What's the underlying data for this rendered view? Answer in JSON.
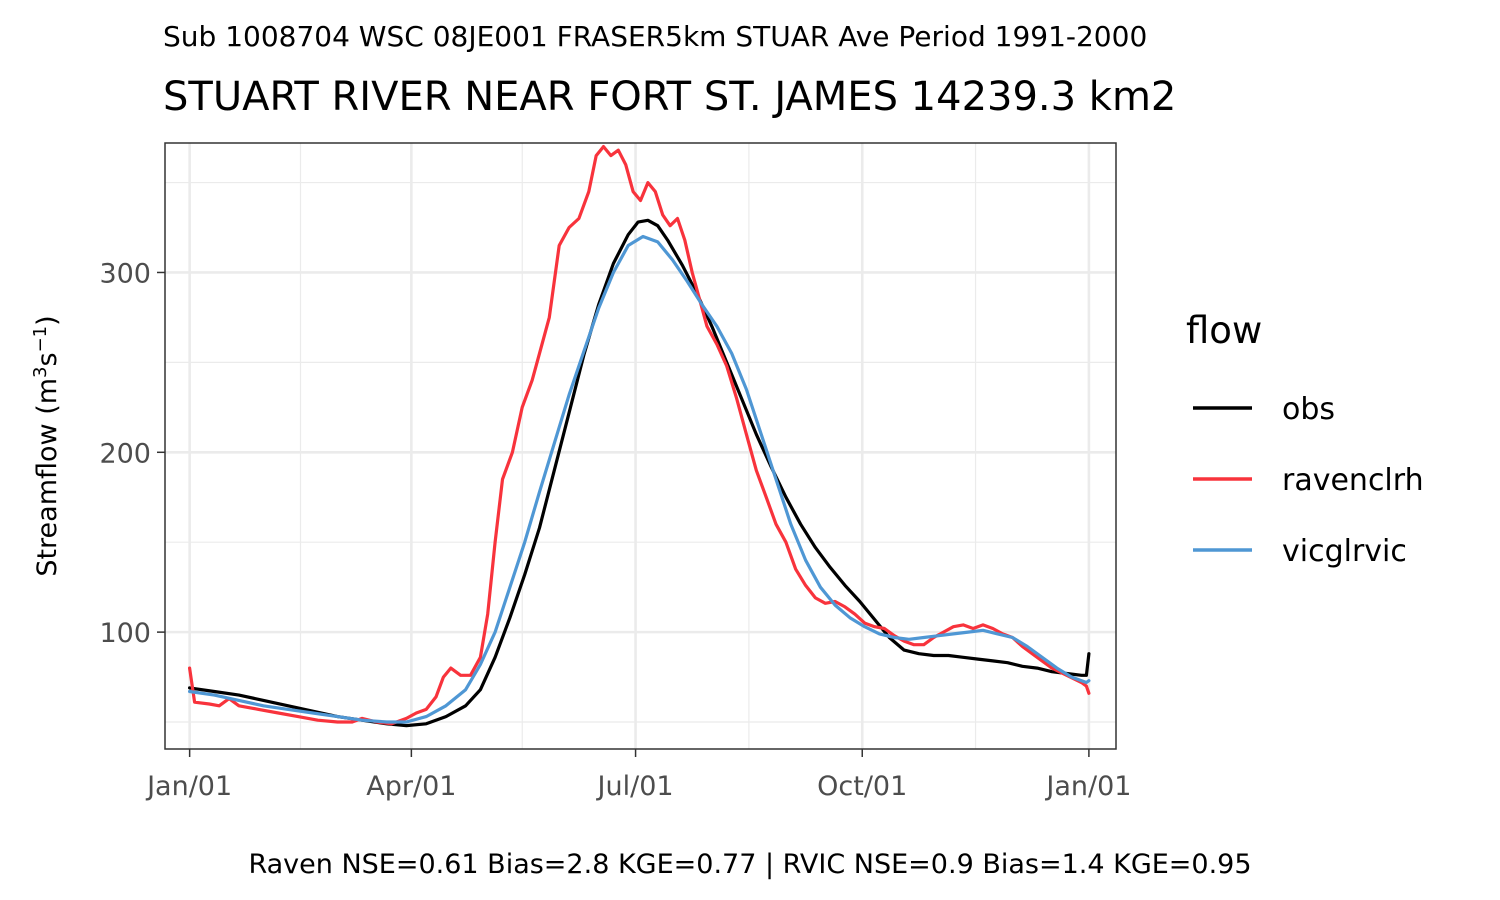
{
  "chart_data": {
    "type": "line",
    "subtitle": "Sub 1008704 WSC 08JE001 FRASER5km STUAR Ave Period 1991-2000",
    "title": "STUART RIVER NEAR FORT ST. JAMES 14239.3 km2",
    "ylabel": {
      "base": "Streamflow (m",
      "sup1": "3",
      "mid": "s",
      "sup2": "−1",
      "end": ")"
    },
    "caption": "Raven NSE=0.61 Bias=2.8 KGE=0.77 | RVIC NSE=0.9 Bias=1.4 KGE=0.95",
    "xlim": [
      -10,
      376
    ],
    "ylim": [
      35,
      372
    ],
    "x_ticks": [
      {
        "day": 0,
        "label": "Jan/01"
      },
      {
        "day": 90,
        "label": "Apr/01"
      },
      {
        "day": 181,
        "label": "Jul/01"
      },
      {
        "day": 273,
        "label": "Oct/01"
      },
      {
        "day": 365,
        "label": "Jan/01"
      }
    ],
    "x_minor_ticks": [
      45,
      135,
      227,
      319
    ],
    "y_ticks": [
      {
        "value": 100,
        "label": "100"
      },
      {
        "value": 200,
        "label": "200"
      },
      {
        "value": 300,
        "label": "300"
      }
    ],
    "y_minor_ticks": [
      50,
      150,
      250,
      350
    ],
    "grid": true,
    "legend": {
      "title": "flow",
      "position": "right"
    },
    "series": [
      {
        "name": "obs",
        "color": "#000000",
        "points": [
          [
            0,
            69
          ],
          [
            10,
            67
          ],
          [
            20,
            65
          ],
          [
            30,
            62
          ],
          [
            40,
            59
          ],
          [
            50,
            56
          ],
          [
            60,
            53
          ],
          [
            70,
            51
          ],
          [
            80,
            49
          ],
          [
            88,
            48
          ],
          [
            96,
            49
          ],
          [
            104,
            53
          ],
          [
            112,
            59
          ],
          [
            118,
            68
          ],
          [
            124,
            86
          ],
          [
            130,
            108
          ],
          [
            136,
            132
          ],
          [
            142,
            158
          ],
          [
            148,
            190
          ],
          [
            154,
            222
          ],
          [
            160,
            254
          ],
          [
            166,
            282
          ],
          [
            172,
            305
          ],
          [
            178,
            321
          ],
          [
            182,
            328
          ],
          [
            186,
            329
          ],
          [
            190,
            326
          ],
          [
            194,
            318
          ],
          [
            200,
            304
          ],
          [
            206,
            288
          ],
          [
            212,
            270
          ],
          [
            218,
            250
          ],
          [
            224,
            230
          ],
          [
            230,
            210
          ],
          [
            236,
            192
          ],
          [
            242,
            175
          ],
          [
            248,
            160
          ],
          [
            254,
            147
          ],
          [
            260,
            136
          ],
          [
            266,
            126
          ],
          [
            272,
            117
          ],
          [
            278,
            107
          ],
          [
            284,
            97
          ],
          [
            290,
            90
          ],
          [
            296,
            88
          ],
          [
            302,
            87
          ],
          [
            308,
            87
          ],
          [
            314,
            86
          ],
          [
            320,
            85
          ],
          [
            326,
            84
          ],
          [
            332,
            83
          ],
          [
            338,
            81
          ],
          [
            344,
            80
          ],
          [
            350,
            78
          ],
          [
            356,
            77
          ],
          [
            362,
            76
          ],
          [
            364,
            76
          ],
          [
            365,
            88
          ]
        ]
      },
      {
        "name": "ravenclrh",
        "color": "#f8333c",
        "points": [
          [
            0,
            80
          ],
          [
            2,
            61
          ],
          [
            8,
            60
          ],
          [
            12,
            59
          ],
          [
            16,
            63
          ],
          [
            20,
            59
          ],
          [
            28,
            57
          ],
          [
            36,
            55
          ],
          [
            44,
            53
          ],
          [
            52,
            51
          ],
          [
            60,
            50
          ],
          [
            66,
            50
          ],
          [
            70,
            52
          ],
          [
            76,
            50
          ],
          [
            82,
            49
          ],
          [
            88,
            52
          ],
          [
            92,
            55
          ],
          [
            96,
            57
          ],
          [
            100,
            64
          ],
          [
            103,
            75
          ],
          [
            106,
            80
          ],
          [
            110,
            76
          ],
          [
            114,
            76
          ],
          [
            118,
            86
          ],
          [
            121,
            110
          ],
          [
            124,
            150
          ],
          [
            127,
            185
          ],
          [
            131,
            200
          ],
          [
            135,
            225
          ],
          [
            139,
            240
          ],
          [
            142,
            255
          ],
          [
            146,
            275
          ],
          [
            150,
            315
          ],
          [
            154,
            325
          ],
          [
            158,
            330
          ],
          [
            162,
            345
          ],
          [
            165,
            365
          ],
          [
            168,
            370
          ],
          [
            171,
            365
          ],
          [
            174,
            368
          ],
          [
            177,
            360
          ],
          [
            180,
            345
          ],
          [
            183,
            340
          ],
          [
            186,
            350
          ],
          [
            189,
            345
          ],
          [
            192,
            332
          ],
          [
            195,
            326
          ],
          [
            198,
            330
          ],
          [
            201,
            318
          ],
          [
            204,
            300
          ],
          [
            207,
            285
          ],
          [
            210,
            270
          ],
          [
            214,
            260
          ],
          [
            218,
            248
          ],
          [
            222,
            230
          ],
          [
            226,
            210
          ],
          [
            230,
            190
          ],
          [
            234,
            175
          ],
          [
            238,
            160
          ],
          [
            242,
            150
          ],
          [
            246,
            135
          ],
          [
            250,
            126
          ],
          [
            254,
            119
          ],
          [
            258,
            116
          ],
          [
            262,
            117
          ],
          [
            266,
            114
          ],
          [
            270,
            110
          ],
          [
            274,
            105
          ],
          [
            278,
            103
          ],
          [
            282,
            102
          ],
          [
            286,
            98
          ],
          [
            290,
            95
          ],
          [
            294,
            93
          ],
          [
            298,
            93
          ],
          [
            302,
            97
          ],
          [
            306,
            100
          ],
          [
            310,
            103
          ],
          [
            314,
            104
          ],
          [
            318,
            102
          ],
          [
            322,
            104
          ],
          [
            326,
            102
          ],
          [
            330,
            99
          ],
          [
            334,
            97
          ],
          [
            338,
            92
          ],
          [
            342,
            88
          ],
          [
            346,
            84
          ],
          [
            350,
            80
          ],
          [
            356,
            76
          ],
          [
            362,
            72
          ],
          [
            364,
            70
          ],
          [
            365,
            66
          ]
        ]
      },
      {
        "name": "vicglrvic",
        "color": "#4f97d4",
        "points": [
          [
            0,
            67
          ],
          [
            10,
            65
          ],
          [
            20,
            62
          ],
          [
            30,
            59
          ],
          [
            40,
            57
          ],
          [
            50,
            55
          ],
          [
            60,
            53
          ],
          [
            70,
            51
          ],
          [
            80,
            50
          ],
          [
            88,
            50
          ],
          [
            96,
            53
          ],
          [
            104,
            59
          ],
          [
            112,
            68
          ],
          [
            118,
            82
          ],
          [
            124,
            100
          ],
          [
            130,
            125
          ],
          [
            136,
            150
          ],
          [
            142,
            178
          ],
          [
            148,
            205
          ],
          [
            154,
            232
          ],
          [
            160,
            256
          ],
          [
            166,
            280
          ],
          [
            172,
            300
          ],
          [
            178,
            315
          ],
          [
            184,
            320
          ],
          [
            190,
            317
          ],
          [
            196,
            307
          ],
          [
            202,
            295
          ],
          [
            208,
            282
          ],
          [
            214,
            270
          ],
          [
            220,
            255
          ],
          [
            226,
            235
          ],
          [
            232,
            210
          ],
          [
            238,
            185
          ],
          [
            244,
            160
          ],
          [
            250,
            140
          ],
          [
            256,
            125
          ],
          [
            262,
            115
          ],
          [
            268,
            108
          ],
          [
            274,
            103
          ],
          [
            280,
            99
          ],
          [
            286,
            97
          ],
          [
            292,
            96
          ],
          [
            298,
            97
          ],
          [
            304,
            98
          ],
          [
            310,
            99
          ],
          [
            316,
            100
          ],
          [
            322,
            101
          ],
          [
            328,
            99
          ],
          [
            334,
            97
          ],
          [
            340,
            92
          ],
          [
            346,
            86
          ],
          [
            352,
            80
          ],
          [
            358,
            75
          ],
          [
            364,
            72
          ],
          [
            365,
            73
          ]
        ]
      }
    ]
  }
}
